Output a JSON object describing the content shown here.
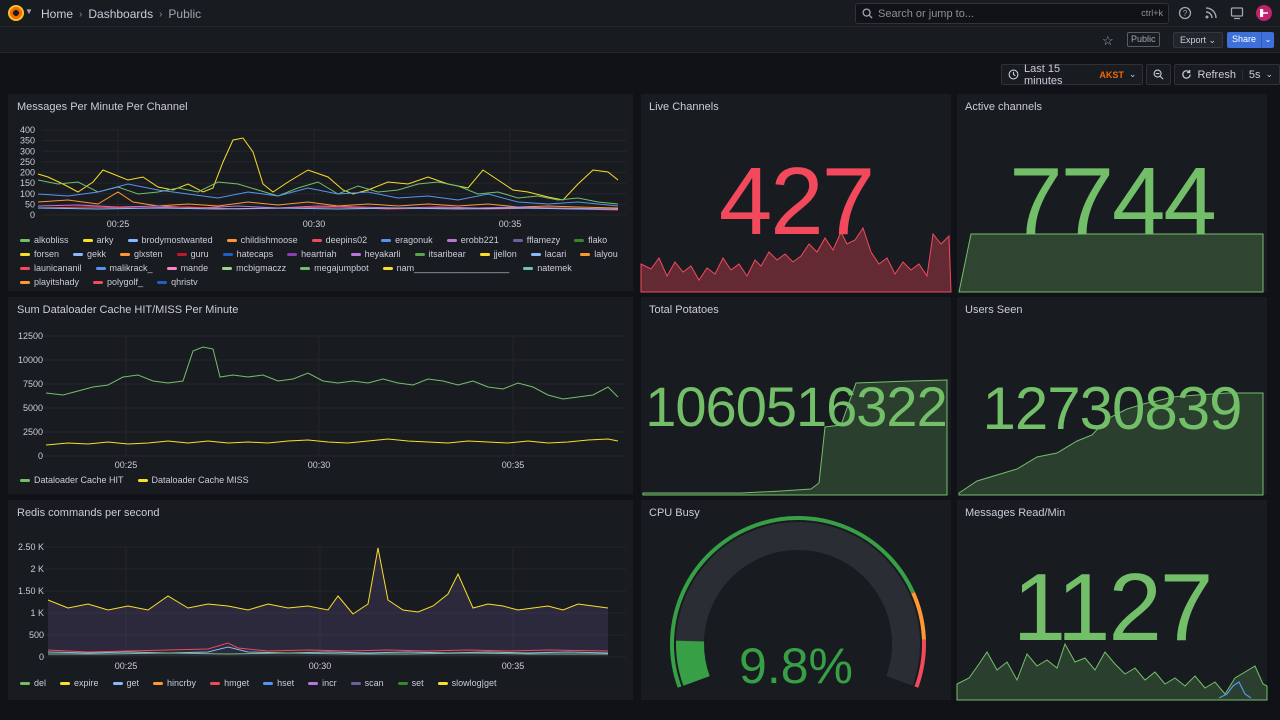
{
  "breadcrumb": {
    "home": "Home",
    "dashboards": "Dashboards",
    "current": "Public"
  },
  "search": {
    "placeholder": "Search or jump to...",
    "shortcut": "ctrl+k"
  },
  "toolbar": {
    "public_badge": "Public",
    "export_label": "Export",
    "share_label": "Share"
  },
  "time": {
    "range": "Last 15 minutes",
    "tz": "AKST",
    "refresh": "Refresh",
    "interval": "5s"
  },
  "colors": {
    "red": "#f2495c",
    "green": "#73bf69",
    "yellow": "#fade2a",
    "orange": "#ff9830",
    "blue": "#5794f2",
    "purple": "#b877d9"
  },
  "panels": {
    "messages_per_minute": {
      "title": "Messages Per Minute Per Channel",
      "yticks": [
        "400",
        "350",
        "300",
        "250",
        "200",
        "150",
        "100",
        "50",
        "0"
      ],
      "xticks": [
        "00:25",
        "00:30",
        "00:35"
      ],
      "legend": [
        [
          "alkobliss",
          "#73bf69"
        ],
        [
          "arky",
          "#fade2a"
        ],
        [
          "brodymostwanted",
          "#8ab8ff"
        ],
        [
          "childishmoose",
          "#ff9830"
        ],
        [
          "deepins02",
          "#f2495c"
        ],
        [
          "eragonuk",
          "#5794f2"
        ],
        [
          "erobb221",
          "#b877d9"
        ],
        [
          "fflamezy",
          "#705da0"
        ],
        [
          "flako",
          "#37872d"
        ],
        [
          "forsen",
          "#fade2a"
        ],
        [
          "gekk",
          "#8ab8ff"
        ],
        [
          "glxsten",
          "#ff9830"
        ],
        [
          "guru",
          "#c4162a"
        ],
        [
          "hatecaps",
          "#1f60c4"
        ],
        [
          "heartriah",
          "#8f3bb8"
        ],
        [
          "heyakarli",
          "#b877d9"
        ],
        [
          "itsaribear",
          "#56a64b"
        ],
        [
          "jjellon",
          "#fade2a"
        ],
        [
          "lacari",
          "#8ab8ff"
        ],
        [
          "lalyou",
          "#ff9830"
        ],
        [
          "launicananil",
          "#f2495c"
        ],
        [
          "malikrack_",
          "#5794f2"
        ],
        [
          "mande",
          "#ff82c4"
        ],
        [
          "mcbigmaczz",
          "#96d98d"
        ],
        [
          "megajumpbot",
          "#73bf69"
        ],
        [
          "nam___________________",
          "#fade2a"
        ],
        [
          "natemek",
          "#73bfb8"
        ],
        [
          "playitshady",
          "#ff9830"
        ],
        [
          "polygolf_",
          "#f2495c"
        ],
        [
          "qhristv",
          "#1f60c4"
        ]
      ]
    },
    "cache": {
      "title": "Sum Dataloader Cache HIT/MISS Per Minute",
      "yticks": [
        "12500",
        "10000",
        "7500",
        "5000",
        "2500",
        "0"
      ],
      "xticks": [
        "00:25",
        "00:30",
        "00:35"
      ],
      "legend": [
        [
          "Dataloader Cache HIT",
          "#73bf69"
        ],
        [
          "Dataloader Cache MISS",
          "#fade2a"
        ]
      ]
    },
    "redis": {
      "title": "Redis commands per second",
      "yticks": [
        "2.50 K",
        "2 K",
        "1.50 K",
        "1 K",
        "500",
        "0"
      ],
      "xticks": [
        "00:25",
        "00:30",
        "00:35"
      ],
      "legend": [
        [
          "del",
          "#73bf69"
        ],
        [
          "expire",
          "#fade2a"
        ],
        [
          "get",
          "#8ab8ff"
        ],
        [
          "hincrby",
          "#ff9830"
        ],
        [
          "hmget",
          "#f2495c"
        ],
        [
          "hset",
          "#5794f2"
        ],
        [
          "incr",
          "#b877d9"
        ],
        [
          "scan",
          "#705da0"
        ],
        [
          "set",
          "#37872d"
        ],
        [
          "slowlog|get",
          "#fade2a"
        ]
      ]
    },
    "live_channels": {
      "title": "Live Channels",
      "value": "427"
    },
    "active_channels": {
      "title": "Active channels",
      "value": "7744"
    },
    "total_potatoes": {
      "title": "Total Potatoes",
      "value": "1060516322"
    },
    "users_seen": {
      "title": "Users Seen",
      "value": "12730839"
    },
    "cpu_busy": {
      "title": "CPU Busy",
      "value": "9.8%",
      "fraction": 0.098
    },
    "messages_read": {
      "title": "Messages Read/Min",
      "value": "1127"
    }
  }
}
